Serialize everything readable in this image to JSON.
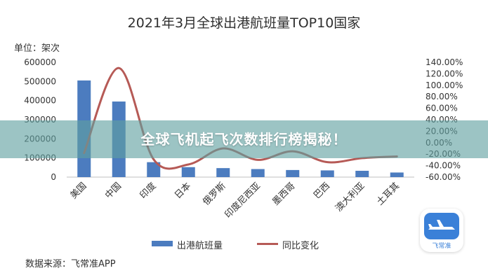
{
  "page": {
    "banner_text": "全球飞机起飞次数排行榜揭秘！",
    "source_text": "数据来源：飞常准APP",
    "logo_label": "飞常准",
    "logo_icon": "airplane-icon"
  },
  "colors": {
    "bar": "#4c7cbf",
    "line": "#b65a56",
    "logo_bg": "#3a80d8",
    "grid_text": "#333333"
  },
  "chart_data": {
    "type": "bar",
    "title": "2021年3月全球出港航班量TOP10国家",
    "ylabel": "单位：架次",
    "categories": [
      "美国",
      "中国",
      "印度",
      "日本",
      "俄罗斯",
      "印度尼西亚",
      "墨西哥",
      "巴西",
      "澳大利亚",
      "土耳其"
    ],
    "ylim": [
      0,
      600000
    ],
    "yticks": [
      "0",
      "100000",
      "200000",
      "300000",
      "400000",
      "500000",
      "600000"
    ],
    "y2lim": [
      -0.6,
      1.4
    ],
    "y2ticks": [
      "-60.00%",
      "-40.00%",
      "-20.00%",
      "0.00%",
      "20.00%",
      "40.00%",
      "60.00%",
      "80.00%",
      "100.00%",
      "120.00%",
      "140.00%"
    ],
    "series": [
      {
        "name": "出港航班量",
        "type": "bar",
        "axis": "left",
        "values": [
          505000,
          395000,
          78000,
          52000,
          47000,
          42000,
          37000,
          35000,
          33000,
          24000
        ]
      },
      {
        "name": "同比变化",
        "type": "line",
        "axis": "right",
        "values": [
          -0.18,
          1.3,
          -0.29,
          -0.38,
          -0.1,
          -0.3,
          -0.15,
          -0.34,
          -0.27,
          -0.24
        ]
      }
    ],
    "legend_position": "bottom",
    "grid": false
  }
}
